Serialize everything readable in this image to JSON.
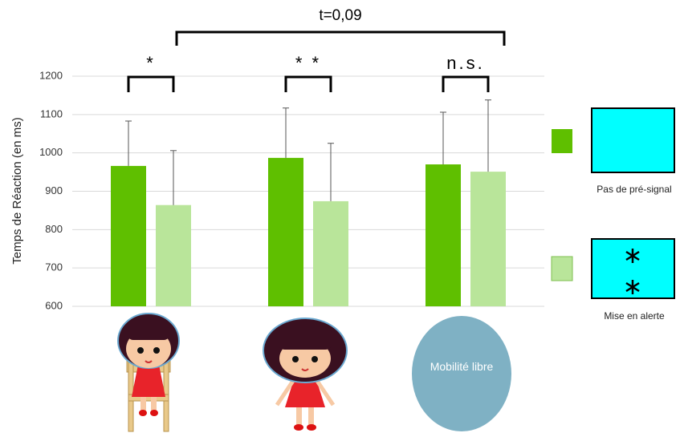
{
  "chart_data": {
    "type": "bar",
    "y_label": "Temps de Réaction (en ms)",
    "categories": [
      null,
      null,
      "Mobilité libre"
    ],
    "series": [
      {
        "name": "Pas de pré-signal",
        "color": "#5fbf00",
        "values": [
          966,
          987,
          970
        ],
        "errors": [
          117,
          130,
          136
        ]
      },
      {
        "name": "Mise en alerte",
        "color": "#b9e59a",
        "values": [
          864,
          874,
          951
        ],
        "errors": [
          142,
          151,
          187
        ]
      }
    ],
    "annotations": [
      "*",
      "* *",
      "n.s.",
      "t=0,09"
    ],
    "ylim": [
      600,
      1200
    ],
    "yticks": [
      600,
      700,
      800,
      900,
      1000,
      1100,
      1200
    ],
    "grid": true
  }
}
